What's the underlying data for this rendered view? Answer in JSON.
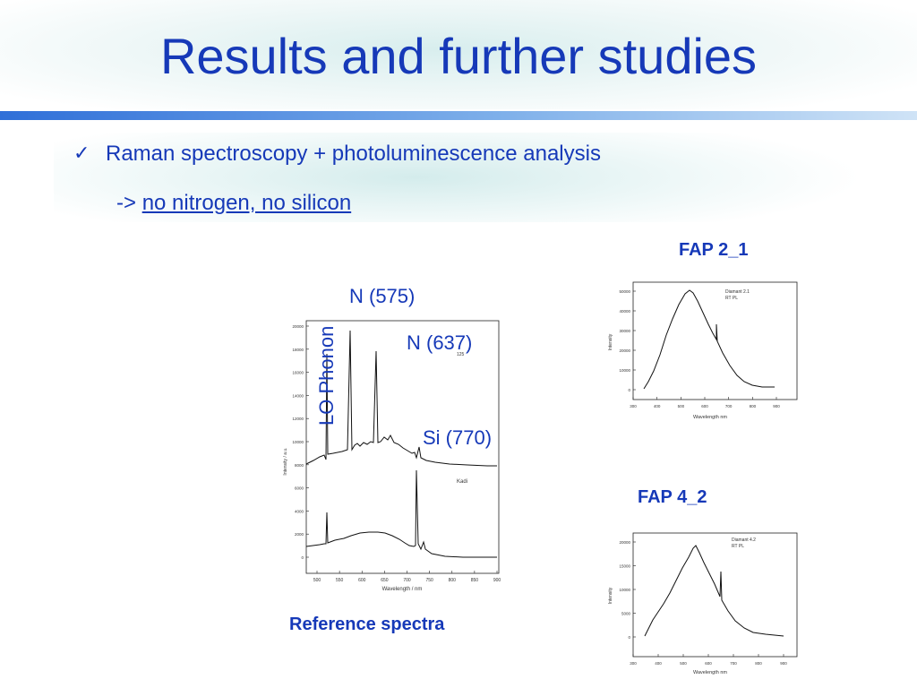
{
  "slide": {
    "title": "Results and further studies",
    "bullet": "Raman spectroscopy + photoluminescence analysis",
    "sub_prefix": "->",
    "sub_underlined": "no nitrogen, no silicon"
  },
  "labels": {
    "fap21": "FAP 2_1",
    "fap42": "FAP 4_2",
    "reference": "Reference spectra"
  },
  "annotations": {
    "n575": "N (575)",
    "n637": "N (637)",
    "lo_phonon": "LO Phonon",
    "si770": "Si (770)"
  },
  "ref_plot": {
    "x_ticks": [
      "500",
      "550",
      "600",
      "650",
      "700",
      "750",
      "800",
      "850",
      "900"
    ],
    "y_ticks": [
      "0",
      "2000",
      "4000",
      "6000",
      "8000",
      "10000",
      "12000",
      "14000",
      "16000",
      "18000",
      "20000"
    ],
    "xlabel": "Wavelength / nm",
    "ylabel": "Intensity / a.u.",
    "inset_label": "Kadi",
    "small_label": "125"
  },
  "fap21_plot": {
    "x_ticks": [
      "300",
      "400",
      "500",
      "600",
      "700",
      "800",
      "900"
    ],
    "y_ticks": [
      "0",
      "10000",
      "20000",
      "30000",
      "40000",
      "50000"
    ],
    "xlabel": "Wavelength nm",
    "ylabel": "Intensity",
    "legend": [
      "Diamant 2.1",
      "RT PL"
    ]
  },
  "fap42_plot": {
    "x_ticks": [
      "300",
      "400",
      "500",
      "600",
      "700",
      "800",
      "900"
    ],
    "y_ticks": [
      "0",
      "5000",
      "10000",
      "15000",
      "20000"
    ],
    "xlabel": "Wavelength nm",
    "ylabel": "Intensity",
    "legend": [
      "Diamant 4.2",
      "RT PL"
    ]
  }
}
